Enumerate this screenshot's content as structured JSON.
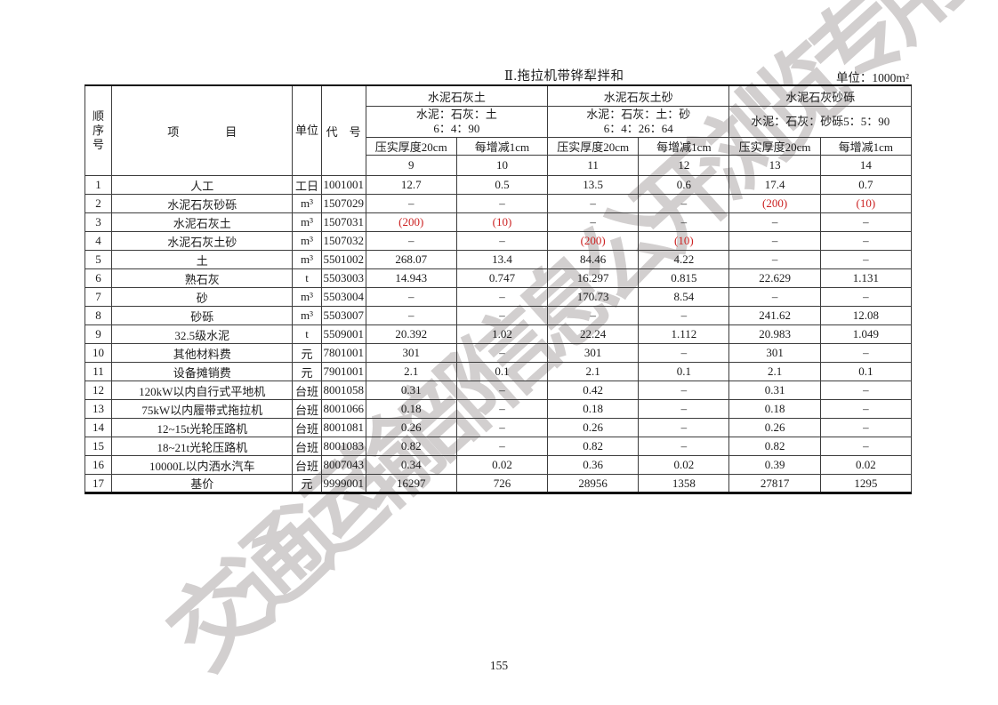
{
  "page": {
    "title": "Ⅱ.拖拉机带铧犁拌和",
    "unit_label": "单位：1000m²",
    "page_number": "155"
  },
  "watermark": {
    "text": "交通运输部信息公开浏览专用",
    "color": "#d2cfcf"
  },
  "table": {
    "left_headers": {
      "seq": "顺序号",
      "item": "项　　　　目",
      "unit": "单位",
      "code": "代　号"
    },
    "groups": [
      {
        "name": "水泥石灰土",
        "ratio_line1": "水泥：石灰：土",
        "ratio_line2": "6：4：90",
        "col1": "压实厚度20cm",
        "col2": "每增减1cm",
        "num1": "9",
        "num2": "10"
      },
      {
        "name": "水泥石灰土砂",
        "ratio_line1": "水泥：石灰：土：砂",
        "ratio_line2": "6：4：26：64",
        "col1": "压实厚度20cm",
        "col2": "每增减1cm",
        "num1": "11",
        "num2": "12"
      },
      {
        "name": "水泥石灰砂砾",
        "ratio_line1": "水泥：石灰：砂砾5：5：90",
        "ratio_line2": "",
        "col1": "压实厚度20cm",
        "col2": "每增减1cm",
        "num1": "13",
        "num2": "14"
      }
    ],
    "red_color": "#cc2222",
    "rows": [
      {
        "seq": "1",
        "item": "人工",
        "unit": "工日",
        "code": "1001001",
        "values": [
          "12.7",
          "0.5",
          "13.5",
          "0.6",
          "17.4",
          "0.7"
        ]
      },
      {
        "seq": "2",
        "item": "水泥石灰砂砾",
        "unit": "m³",
        "code": "1507029",
        "values": [
          "–",
          "–",
          "–",
          "–",
          "(200)",
          "(10)"
        ]
      },
      {
        "seq": "3",
        "item": "水泥石灰土",
        "unit": "m³",
        "code": "1507031",
        "values": [
          "(200)",
          "(10)",
          "–",
          "–",
          "–",
          "–"
        ]
      },
      {
        "seq": "4",
        "item": "水泥石灰土砂",
        "unit": "m³",
        "code": "1507032",
        "values": [
          "–",
          "–",
          "(200)",
          "(10)",
          "–",
          "–"
        ]
      },
      {
        "seq": "5",
        "item": "土",
        "unit": "m³",
        "code": "5501002",
        "values": [
          "268.07",
          "13.4",
          "84.46",
          "4.22",
          "–",
          "–"
        ]
      },
      {
        "seq": "6",
        "item": "熟石灰",
        "unit": "t",
        "code": "5503003",
        "values": [
          "14.943",
          "0.747",
          "16.297",
          "0.815",
          "22.629",
          "1.131"
        ]
      },
      {
        "seq": "7",
        "item": "砂",
        "unit": "m³",
        "code": "5503004",
        "values": [
          "–",
          "–",
          "170.73",
          "8.54",
          "–",
          "–"
        ]
      },
      {
        "seq": "8",
        "item": "砂砾",
        "unit": "m³",
        "code": "5503007",
        "values": [
          "–",
          "–",
          "–",
          "–",
          "241.62",
          "12.08"
        ]
      },
      {
        "seq": "9",
        "item": "32.5级水泥",
        "unit": "t",
        "code": "5509001",
        "values": [
          "20.392",
          "1.02",
          "22.24",
          "1.112",
          "20.983",
          "1.049"
        ]
      },
      {
        "seq": "10",
        "item": "其他材料费",
        "unit": "元",
        "code": "7801001",
        "values": [
          "301",
          "–",
          "301",
          "–",
          "301",
          "–"
        ]
      },
      {
        "seq": "11",
        "item": "设备摊销费",
        "unit": "元",
        "code": "7901001",
        "values": [
          "2.1",
          "0.1",
          "2.1",
          "0.1",
          "2.1",
          "0.1"
        ]
      },
      {
        "seq": "12",
        "item": "120kW以内自行式平地机",
        "unit": "台班",
        "code": "8001058",
        "values": [
          "0.31",
          "–",
          "0.42",
          "–",
          "0.31",
          "–"
        ]
      },
      {
        "seq": "13",
        "item": "75kW以内履带式拖拉机",
        "unit": "台班",
        "code": "8001066",
        "values": [
          "0.18",
          "–",
          "0.18",
          "–",
          "0.18",
          "–"
        ]
      },
      {
        "seq": "14",
        "item": "12~15t光轮压路机",
        "unit": "台班",
        "code": "8001081",
        "values": [
          "0.26",
          "–",
          "0.26",
          "–",
          "0.26",
          "–"
        ]
      },
      {
        "seq": "15",
        "item": "18~21t光轮压路机",
        "unit": "台班",
        "code": "8001083",
        "values": [
          "0.82",
          "–",
          "0.82",
          "–",
          "0.82",
          "–"
        ]
      },
      {
        "seq": "16",
        "item": "10000L以内洒水汽车",
        "unit": "台班",
        "code": "8007043",
        "values": [
          "0.34",
          "0.02",
          "0.36",
          "0.02",
          "0.39",
          "0.02"
        ]
      },
      {
        "seq": "17",
        "item": "基价",
        "unit": "元",
        "code": "9999001",
        "values": [
          "16297",
          "726",
          "28956",
          "1358",
          "27817",
          "1295"
        ]
      }
    ]
  }
}
